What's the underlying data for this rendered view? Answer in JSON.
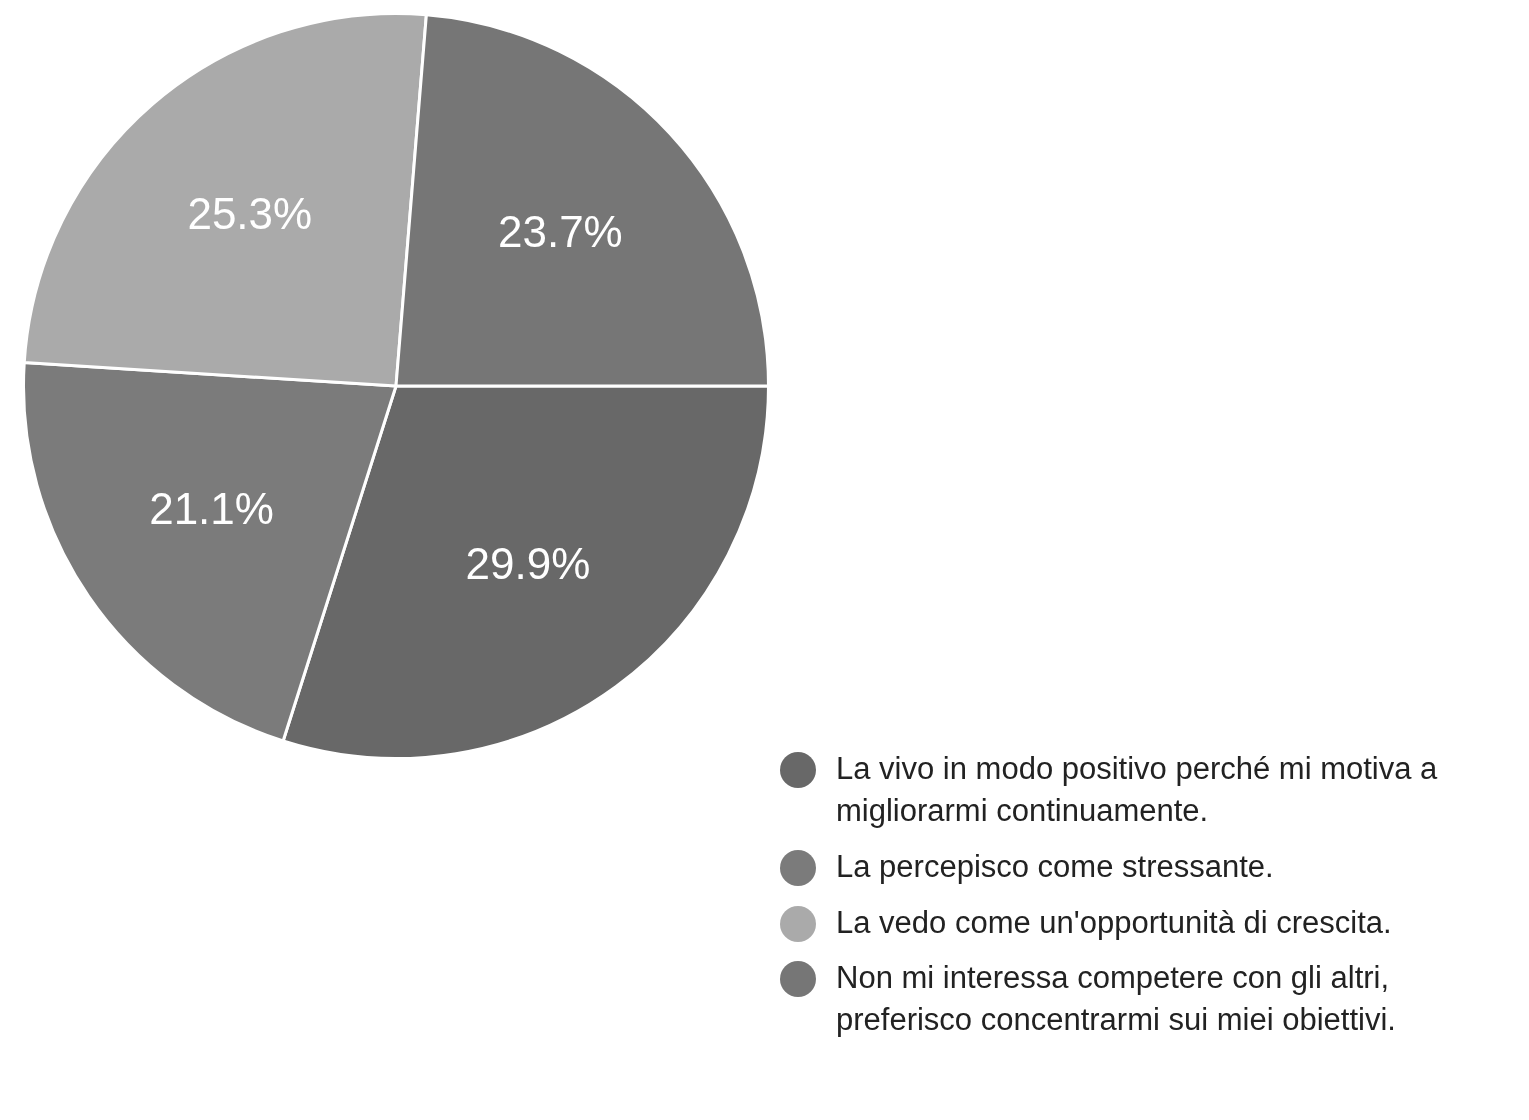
{
  "chart_data": {
    "type": "pie",
    "categories": [
      "La vivo in modo positivo perché mi motiva a migliorarmi continuamente.",
      "La percepisco come stressante.",
      "La vedo come un'opportunità di crescita.",
      "Non mi interessa competere con gli altri, preferisco concentrarmi sui miei obiettivi."
    ],
    "values": [
      29.9,
      21.1,
      25.3,
      23.7
    ],
    "colors": [
      "#686868",
      "#7b7b7b",
      "#aaaaaa",
      "#767676"
    ],
    "value_labels": [
      "29.9%",
      "21.1%",
      "25.3%",
      "23.7%"
    ],
    "legend": "bottom right"
  }
}
